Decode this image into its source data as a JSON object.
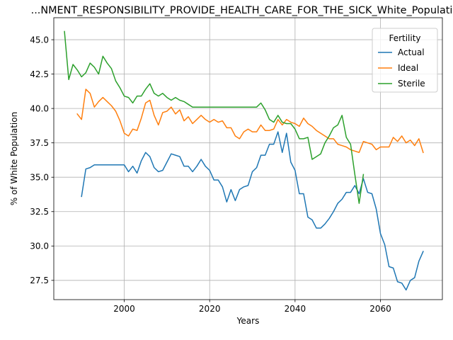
{
  "chart_data": {
    "type": "line",
    "title": "...NMENT_RESPONSIBILITY_PROVIDE_HEALTH_CARE_FOR_THE_SICK_White_Population",
    "xlabel": "Years",
    "ylabel": "% of White Population",
    "xlim": [
      1983.5,
      2074.5
    ],
    "ylim": [
      26.1,
      46.6
    ],
    "xticks": [
      2000,
      2020,
      2040,
      2060
    ],
    "yticks": [
      27.5,
      30.0,
      32.5,
      35.0,
      37.5,
      40.0,
      42.5,
      45.0
    ],
    "ytick_labels": [
      "27.5",
      "30.0",
      "32.5",
      "35.0",
      "37.5",
      "40.0",
      "42.5",
      "45.0"
    ],
    "grid": true,
    "legend": {
      "title": "Fertility",
      "location": "upper right"
    },
    "series": [
      {
        "name": "Actual",
        "color": "#1f77b4",
        "x": [
          1990,
          1991,
          1992,
          1993,
          1994,
          1995,
          1996,
          1997,
          1998,
          1999,
          2000,
          2001,
          2002,
          2003,
          2004,
          2005,
          2006,
          2007,
          2008,
          2009,
          2010,
          2011,
          2012,
          2013,
          2014,
          2015,
          2016,
          2017,
          2018,
          2019,
          2020,
          2021,
          2022,
          2023,
          2024,
          2025,
          2026,
          2027,
          2028,
          2029,
          2030,
          2031,
          2032,
          2033,
          2034,
          2035,
          2036,
          2037,
          2038,
          2039,
          2040,
          2041,
          2042,
          2043,
          2044,
          2045,
          2046,
          2047,
          2048,
          2049,
          2050,
          2051,
          2052,
          2053,
          2054,
          2055,
          2056,
          2057,
          2058,
          2059,
          2060,
          2061,
          2062,
          2063,
          2064,
          2065,
          2066,
          2067,
          2068,
          2069,
          2070
        ],
        "y": [
          33.6,
          35.6,
          35.7,
          35.9,
          35.9,
          35.9,
          35.9,
          35.9,
          35.9,
          35.9,
          35.9,
          35.4,
          35.8,
          35.3,
          36.2,
          36.8,
          36.5,
          35.7,
          35.4,
          35.5,
          36.1,
          36.7,
          36.6,
          36.5,
          35.8,
          35.8,
          35.4,
          35.8,
          36.3,
          35.8,
          35.5,
          34.8,
          34.8,
          34.3,
          33.2,
          34.1,
          33.3,
          34.1,
          34.3,
          34.4,
          35.4,
          35.7,
          36.6,
          36.6,
          37.4,
          37.4,
          38.3,
          36.8,
          38.2,
          36.1,
          35.5,
          33.8,
          33.8,
          32.1,
          31.9,
          31.3,
          31.3,
          31.6,
          32.0,
          32.5,
          33.1,
          33.4,
          33.9,
          33.9,
          34.4,
          33.8,
          34.9,
          33.9,
          33.8,
          32.7,
          30.9,
          30.1,
          28.5,
          28.4,
          27.4,
          27.3,
          26.8,
          27.5,
          27.7,
          28.9,
          29.6
        ]
      },
      {
        "name": "Ideal",
        "color": "#ff7f0e",
        "x": [
          1989,
          1990,
          1991,
          1992,
          1993,
          1994,
          1995,
          1996,
          1997,
          1998,
          1999,
          2000,
          2001,
          2002,
          2003,
          2004,
          2005,
          2006,
          2007,
          2008,
          2009,
          2010,
          2011,
          2012,
          2013,
          2014,
          2015,
          2016,
          2017,
          2018,
          2019,
          2020,
          2021,
          2022,
          2023,
          2024,
          2025,
          2026,
          2027,
          2028,
          2029,
          2030,
          2031,
          2032,
          2033,
          2034,
          2035,
          2036,
          2037,
          2038,
          2039,
          2040,
          2041,
          2042,
          2043,
          2044,
          2045,
          2046,
          2047,
          2048,
          2049,
          2050,
          2051,
          2052,
          2053,
          2054,
          2055,
          2056,
          2057,
          2058,
          2059,
          2060,
          2061,
          2062,
          2063,
          2064,
          2065,
          2066,
          2067,
          2068,
          2069,
          2070
        ],
        "y": [
          39.6,
          39.2,
          41.4,
          41.1,
          40.1,
          40.5,
          40.8,
          40.5,
          40.2,
          39.8,
          39.1,
          38.2,
          38.0,
          38.5,
          38.4,
          39.3,
          40.4,
          40.6,
          39.5,
          38.8,
          39.7,
          39.8,
          40.1,
          39.6,
          39.9,
          39.1,
          39.4,
          38.9,
          39.2,
          39.5,
          39.2,
          39.0,
          39.2,
          39.0,
          39.1,
          38.6,
          38.6,
          38.0,
          37.8,
          38.3,
          38.5,
          38.3,
          38.3,
          38.8,
          38.4,
          38.4,
          38.5,
          39.2,
          38.8,
          39.2,
          39.0,
          38.9,
          38.7,
          39.3,
          38.9,
          38.7,
          38.4,
          38.2,
          38.0,
          37.8,
          37.8,
          37.4,
          37.3,
          37.2,
          37.0,
          36.9,
          36.8,
          37.6,
          37.5,
          37.4,
          37.0,
          37.2,
          37.2,
          37.2,
          37.9,
          37.6,
          38.0,
          37.5,
          37.7,
          37.3,
          37.8,
          36.8
        ]
      },
      {
        "name": "Sterile",
        "color": "#2ca02c",
        "x": [
          1986,
          1987,
          1988,
          1989,
          1990,
          1991,
          1992,
          1993,
          1994,
          1995,
          1996,
          1997,
          1998,
          1999,
          2000,
          2001,
          2002,
          2003,
          2004,
          2005,
          2006,
          2007,
          2008,
          2009,
          2010,
          2011,
          2012,
          2013,
          2014,
          2015,
          2016,
          2017,
          2018,
          2019,
          2020,
          2021,
          2022,
          2023,
          2024,
          2025,
          2026,
          2027,
          2028,
          2029,
          2030,
          2031,
          2032,
          2033,
          2034,
          2035,
          2036,
          2037,
          2038,
          2039,
          2040,
          2041,
          2042,
          2043,
          2044,
          2045,
          2046,
          2047,
          2048,
          2049,
          2050,
          2051,
          2052,
          2053,
          2054,
          2055,
          2056
        ],
        "y": [
          45.6,
          42.1,
          43.2,
          42.8,
          42.3,
          42.6,
          43.3,
          43.0,
          42.5,
          43.8,
          43.3,
          42.9,
          42.0,
          41.5,
          40.9,
          40.8,
          40.4,
          40.9,
          40.9,
          41.4,
          41.8,
          41.1,
          40.9,
          41.1,
          40.8,
          40.6,
          40.8,
          40.6,
          40.5,
          40.3,
          40.1,
          40.1,
          40.1,
          40.1,
          40.1,
          40.1,
          40.1,
          40.1,
          40.1,
          40.1,
          40.1,
          40.1,
          40.1,
          40.1,
          40.1,
          40.1,
          40.4,
          39.9,
          39.2,
          39.0,
          39.5,
          39.0,
          38.9,
          38.9,
          38.5,
          37.8,
          37.8,
          37.9,
          36.3,
          36.5,
          36.7,
          37.5,
          38.0,
          38.6,
          38.8,
          39.5,
          37.9,
          37.4,
          35.2,
          33.1,
          35.2
        ]
      }
    ]
  }
}
